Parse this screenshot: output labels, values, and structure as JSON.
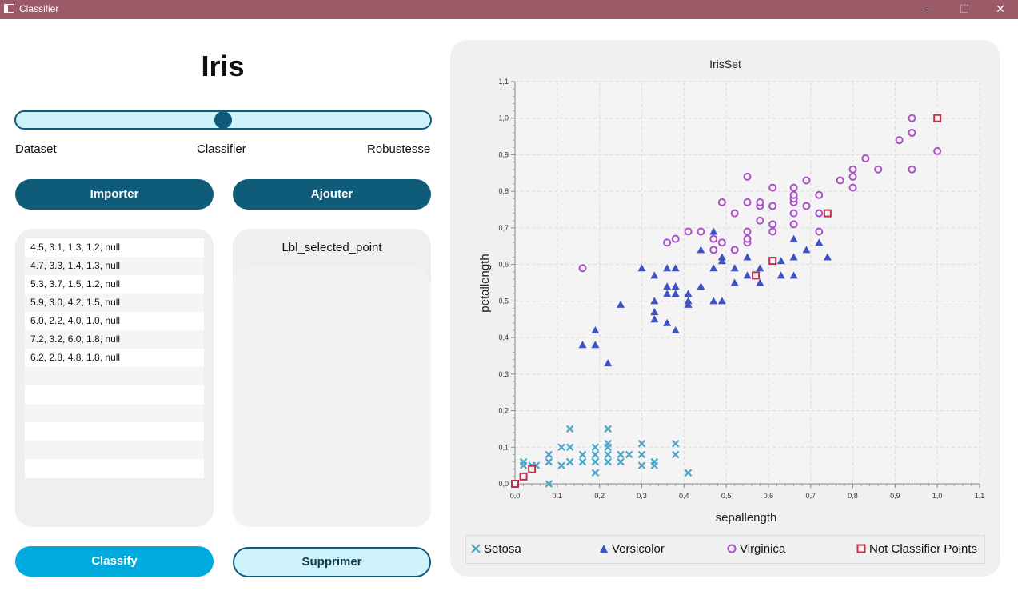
{
  "window": {
    "title": "Classifier",
    "minimize": "—",
    "maximize": "☐",
    "close": "✕"
  },
  "header": {
    "title": "Iris"
  },
  "slider": {
    "labels": [
      "Dataset",
      "Classifier",
      "Robustesse"
    ],
    "value": 0.5
  },
  "buttons": {
    "import": "Importer",
    "add": "Ajouter",
    "classify": "Classify",
    "delete": "Supprimer"
  },
  "point_list": [
    "4.5, 3.1, 1.3, 1.2, null",
    "4.7, 3.3, 1.4, 1.3, null",
    "5.3, 3.7, 1.5, 1.2, null",
    "5.9, 3.0, 4.2, 1.5, null",
    "6.0, 2.2, 4.0, 1.0, null",
    "7.2, 3.2, 6.0, 1.8, null",
    "6.2, 2.8, 4.8, 1.8, null"
  ],
  "selected_label": "Lbl_selected_point",
  "colors": {
    "dark": "#0e5c79",
    "cyan": "#00a9de",
    "light": "#cdf2fb",
    "titlebar": "#9a5a68",
    "setosa": "#4ba6c9",
    "versicolor": "#3f51c3",
    "virginica": "#a950c8",
    "unclassified": "#c02f4c"
  },
  "chart_data": {
    "type": "scatter",
    "title": "IrisSet",
    "xlabel": "sepallength",
    "ylabel": "petallength",
    "xlim": [
      0.0,
      1.1
    ],
    "ylim": [
      0.0,
      1.1
    ],
    "ticks": [
      "0,0",
      "0,1",
      "0,2",
      "0,3",
      "0,4",
      "0,5",
      "0,6",
      "0,7",
      "0,8",
      "0,9",
      "1,0",
      "1,1"
    ],
    "grid": true,
    "legend_position": "bottom",
    "series": [
      {
        "name": "Setosa",
        "marker": "x",
        "color": "#4ba6c9",
        "points": [
          [
            0.02,
            0.06
          ],
          [
            0.02,
            0.05
          ],
          [
            0.04,
            0.05
          ],
          [
            0.05,
            0.05
          ],
          [
            0.08,
            0.0
          ],
          [
            0.08,
            0.06
          ],
          [
            0.08,
            0.08
          ],
          [
            0.11,
            0.05
          ],
          [
            0.11,
            0.1
          ],
          [
            0.13,
            0.1
          ],
          [
            0.13,
            0.06
          ],
          [
            0.13,
            0.15
          ],
          [
            0.16,
            0.06
          ],
          [
            0.16,
            0.08
          ],
          [
            0.19,
            0.03
          ],
          [
            0.19,
            0.06
          ],
          [
            0.19,
            0.08
          ],
          [
            0.19,
            0.1
          ],
          [
            0.22,
            0.06
          ],
          [
            0.22,
            0.08
          ],
          [
            0.22,
            0.1
          ],
          [
            0.22,
            0.11
          ],
          [
            0.22,
            0.15
          ],
          [
            0.25,
            0.06
          ],
          [
            0.25,
            0.08
          ],
          [
            0.27,
            0.08
          ],
          [
            0.3,
            0.05
          ],
          [
            0.3,
            0.08
          ],
          [
            0.3,
            0.11
          ],
          [
            0.33,
            0.05
          ],
          [
            0.33,
            0.06
          ],
          [
            0.38,
            0.08
          ],
          [
            0.38,
            0.11
          ],
          [
            0.41,
            0.03
          ]
        ]
      },
      {
        "name": "Versicolor",
        "marker": "triangle",
        "color": "#3f51c3",
        "points": [
          [
            0.16,
            0.38
          ],
          [
            0.19,
            0.38
          ],
          [
            0.19,
            0.42
          ],
          [
            0.22,
            0.33
          ],
          [
            0.25,
            0.49
          ],
          [
            0.3,
            0.59
          ],
          [
            0.33,
            0.45
          ],
          [
            0.33,
            0.47
          ],
          [
            0.33,
            0.5
          ],
          [
            0.33,
            0.57
          ],
          [
            0.36,
            0.44
          ],
          [
            0.36,
            0.52
          ],
          [
            0.36,
            0.54
          ],
          [
            0.36,
            0.59
          ],
          [
            0.38,
            0.42
          ],
          [
            0.38,
            0.52
          ],
          [
            0.38,
            0.54
          ],
          [
            0.38,
            0.59
          ],
          [
            0.41,
            0.49
          ],
          [
            0.41,
            0.5
          ],
          [
            0.41,
            0.52
          ],
          [
            0.44,
            0.54
          ],
          [
            0.44,
            0.64
          ],
          [
            0.47,
            0.5
          ],
          [
            0.47,
            0.59
          ],
          [
            0.47,
            0.69
          ],
          [
            0.49,
            0.5
          ],
          [
            0.49,
            0.61
          ],
          [
            0.49,
            0.62
          ],
          [
            0.52,
            0.55
          ],
          [
            0.52,
            0.59
          ],
          [
            0.55,
            0.57
          ],
          [
            0.55,
            0.62
          ],
          [
            0.58,
            0.55
          ],
          [
            0.58,
            0.59
          ],
          [
            0.63,
            0.57
          ],
          [
            0.63,
            0.61
          ],
          [
            0.66,
            0.57
          ],
          [
            0.66,
            0.62
          ],
          [
            0.66,
            0.67
          ],
          [
            0.69,
            0.64
          ],
          [
            0.72,
            0.66
          ],
          [
            0.74,
            0.62
          ]
        ]
      },
      {
        "name": "Virginica",
        "marker": "circle",
        "color": "#a950c8",
        "points": [
          [
            0.16,
            0.59
          ],
          [
            0.36,
            0.66
          ],
          [
            0.38,
            0.67
          ],
          [
            0.41,
            0.69
          ],
          [
            0.44,
            0.69
          ],
          [
            0.47,
            0.64
          ],
          [
            0.47,
            0.67
          ],
          [
            0.49,
            0.66
          ],
          [
            0.49,
            0.77
          ],
          [
            0.52,
            0.64
          ],
          [
            0.52,
            0.74
          ],
          [
            0.55,
            0.66
          ],
          [
            0.55,
            0.67
          ],
          [
            0.55,
            0.69
          ],
          [
            0.55,
            0.77
          ],
          [
            0.55,
            0.84
          ],
          [
            0.58,
            0.72
          ],
          [
            0.58,
            0.76
          ],
          [
            0.58,
            0.77
          ],
          [
            0.61,
            0.69
          ],
          [
            0.61,
            0.71
          ],
          [
            0.61,
            0.76
          ],
          [
            0.61,
            0.81
          ],
          [
            0.66,
            0.71
          ],
          [
            0.66,
            0.74
          ],
          [
            0.66,
            0.77
          ],
          [
            0.66,
            0.78
          ],
          [
            0.66,
            0.79
          ],
          [
            0.66,
            0.81
          ],
          [
            0.69,
            0.76
          ],
          [
            0.69,
            0.83
          ],
          [
            0.72,
            0.69
          ],
          [
            0.72,
            0.74
          ],
          [
            0.72,
            0.79
          ],
          [
            0.77,
            0.83
          ],
          [
            0.8,
            0.81
          ],
          [
            0.8,
            0.84
          ],
          [
            0.8,
            0.86
          ],
          [
            0.83,
            0.89
          ],
          [
            0.86,
            0.86
          ],
          [
            0.91,
            0.94
          ],
          [
            0.94,
            0.86
          ],
          [
            0.94,
            0.96
          ],
          [
            0.94,
            1.0
          ],
          [
            1.0,
            0.91
          ]
        ]
      },
      {
        "name": "Not Classifier Points",
        "marker": "square",
        "color": "#c02f4c",
        "points": [
          [
            0.0,
            0.0
          ],
          [
            0.02,
            0.02
          ],
          [
            0.04,
            0.04
          ],
          [
            0.57,
            0.57
          ],
          [
            0.61,
            0.61
          ],
          [
            0.74,
            0.74
          ],
          [
            1.0,
            1.0
          ]
        ]
      }
    ]
  }
}
